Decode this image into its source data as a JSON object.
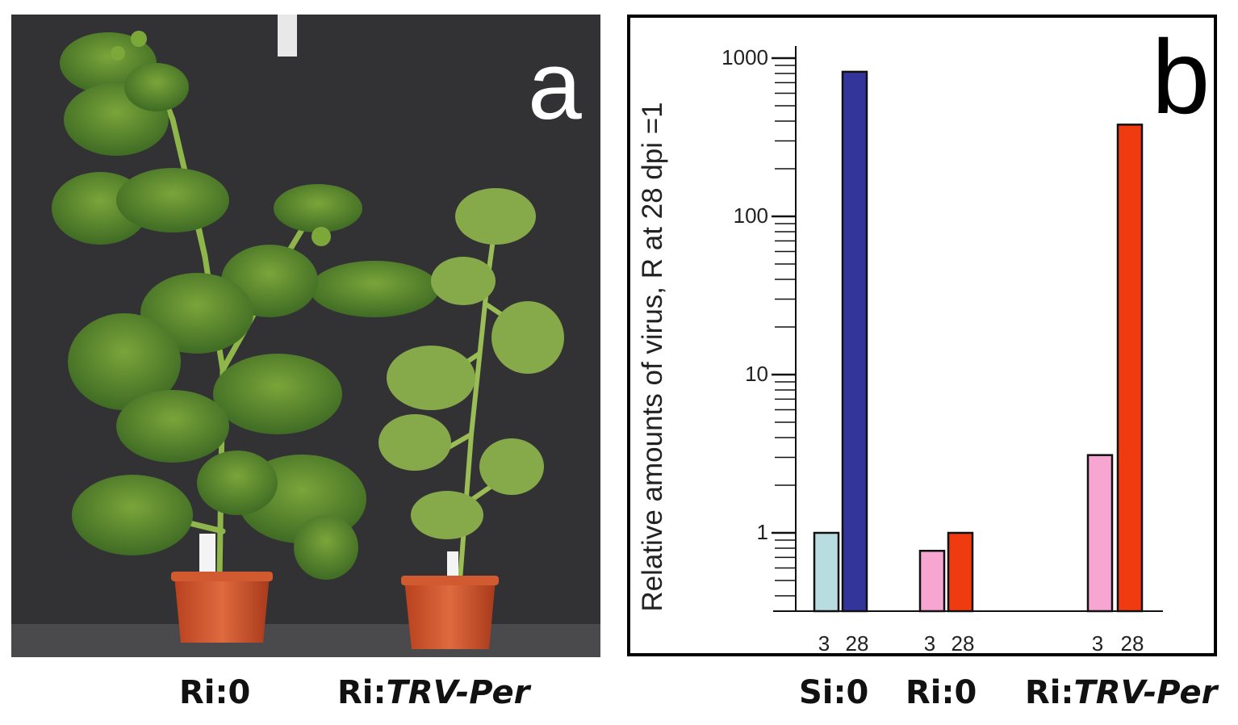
{
  "photo_panel": {
    "letter": "a",
    "captions": [
      {
        "prefix": "Ri:0",
        "italic": ""
      },
      {
        "prefix": "Ri:",
        "italic": "TRV-Per"
      }
    ]
  },
  "chart_panel": {
    "letter": "b",
    "group_captions": [
      {
        "prefix": "Si:0",
        "italic": ""
      },
      {
        "prefix": "Ri:0",
        "italic": ""
      },
      {
        "prefix": "Ri:",
        "italic": "TRV-Per"
      }
    ]
  },
  "chart_data": {
    "type": "bar",
    "ylabel": "Relative amounts of virus, R at 28 dpi =1",
    "yscale": "log",
    "ylim": [
      0.33,
      1000
    ],
    "yticks": [
      1,
      10,
      100,
      1000
    ],
    "ytick_labels": [
      "1",
      "10",
      "100",
      "1000"
    ],
    "groups": [
      {
        "name": "Si:0",
        "bars": [
          {
            "x_label": "3",
            "value": 1,
            "color": "#b8dcdf"
          },
          {
            "x_label": "28",
            "value": 820,
            "color": "#34359a"
          }
        ]
      },
      {
        "name": "Ri:0",
        "bars": [
          {
            "x_label": "3",
            "value": 0.77,
            "color": "#f7a6d1"
          },
          {
            "x_label": "28",
            "value": 1,
            "color": "#f03a10"
          }
        ]
      },
      {
        "name": "Ri:TRV-Per",
        "bars": [
          {
            "x_label": "3",
            "value": 3.1,
            "color": "#f7a6d1"
          },
          {
            "x_label": "28",
            "value": 380,
            "color": "#f03a10"
          }
        ]
      }
    ],
    "grid": false,
    "legend": "none"
  }
}
